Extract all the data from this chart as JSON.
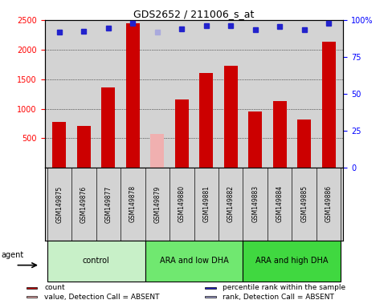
{
  "title": "GDS2652 / 211006_s_at",
  "samples": [
    "GSM149875",
    "GSM149876",
    "GSM149877",
    "GSM149878",
    "GSM149879",
    "GSM149880",
    "GSM149881",
    "GSM149882",
    "GSM149883",
    "GSM149884",
    "GSM149885",
    "GSM149886"
  ],
  "counts": [
    780,
    710,
    1360,
    2440,
    null,
    1150,
    1600,
    1730,
    960,
    1130,
    820,
    2130
  ],
  "absent_value": 570,
  "absent_index": 4,
  "percentile_ranks_pct": [
    92,
    92.4,
    94.4,
    97.6,
    null,
    94.0,
    96.0,
    96.4,
    93.6,
    95.6,
    93.6,
    97.6
  ],
  "absent_rank_pct": 91.6,
  "ylim_left": [
    0,
    2500
  ],
  "ylim_right": [
    0,
    100
  ],
  "right_ticks": [
    0,
    25,
    50,
    75,
    100
  ],
  "left_ticks": [
    500,
    1000,
    1500,
    2000,
    2500
  ],
  "groups": [
    {
      "label": "control",
      "start": 0,
      "end": 3,
      "color": "#c8f0c8"
    },
    {
      "label": "ARA and low DHA",
      "start": 4,
      "end": 7,
      "color": "#70e870"
    },
    {
      "label": "ARA and high DHA",
      "start": 8,
      "end": 11,
      "color": "#40d840"
    }
  ],
  "bar_color": "#cc0000",
  "absent_bar_color": "#f0b0b0",
  "dot_color": "#2222cc",
  "absent_dot_color": "#aaaadd",
  "legend_items": [
    {
      "label": "count",
      "color": "#cc0000"
    },
    {
      "label": "percentile rank within the sample",
      "color": "#2222cc"
    },
    {
      "label": "value, Detection Call = ABSENT",
      "color": "#f0b0b0"
    },
    {
      "label": "rank, Detection Call = ABSENT",
      "color": "#aaaadd"
    }
  ],
  "background_color": "#d3d3d3",
  "agent_label": "agent",
  "bar_width": 0.55,
  "dot_size": 5
}
